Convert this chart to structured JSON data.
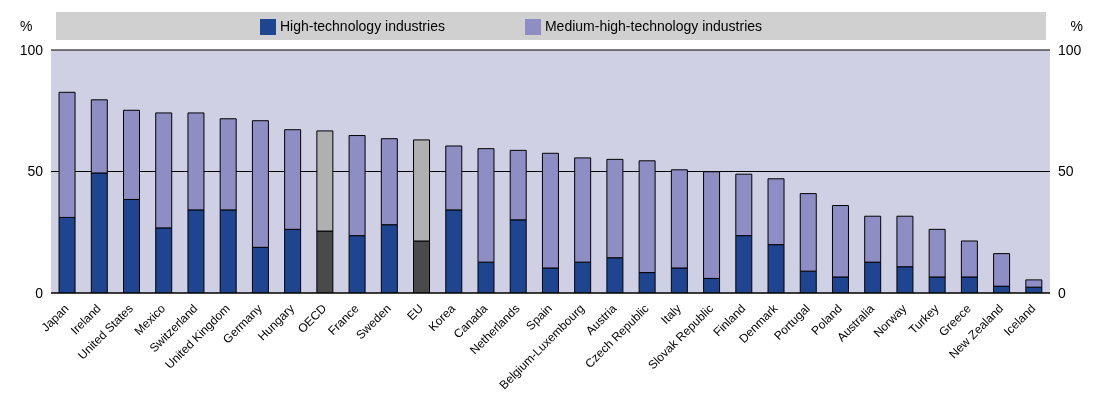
{
  "chart_data": {
    "type": "bar",
    "stacked": true,
    "ylabel": "%",
    "y2label": "%",
    "categories": [
      "Japan",
      "Ireland",
      "United States",
      "Mexico",
      "Switzerland",
      "United Kingdom",
      "Germany",
      "Hungary",
      "OECD",
      "France",
      "Sweden",
      "EU",
      "Korea",
      "Canada",
      "Netherlands",
      "Spain",
      "Belgium-Luxembourg",
      "Austria",
      "Czech Republic",
      "Italy",
      "Slovak Republic",
      "Finland",
      "Denmark",
      "Portugal",
      "Poland",
      "Australia",
      "Norway",
      "Turkey",
      "Greece",
      "New Zealand",
      "Iceland"
    ],
    "series": [
      {
        "name": "High-technology industries",
        "color": "#1f4591",
        "colors": [
          "#1f4591",
          "#1f4591",
          "#1f4591",
          "#1f4591",
          "#1f4591",
          "#1f4591",
          "#1f4591",
          "#1f4591",
          "#4a4a4a",
          "#1f4591",
          "#1f4591",
          "#4a4a4a",
          "#1f4591",
          "#1f4591",
          "#1f4591",
          "#1f4591",
          "#1f4591",
          "#1f4591",
          "#1f4591",
          "#1f4591",
          "#1f4591",
          "#1f4591",
          "#1f4591",
          "#1f4591",
          "#1f4591",
          "#1f4591",
          "#1f4591",
          "#1f4591",
          "#1f4591",
          "#1f4591",
          "#1f4591"
        ],
        "values": [
          31.1,
          49.4,
          38.5,
          26.8,
          34.2,
          34.2,
          18.8,
          26.2,
          25.5,
          23.6,
          28.1,
          21.4,
          34.2,
          12.7,
          30.1,
          10.3,
          12.7,
          14.5,
          8.4,
          10.3,
          6.0,
          23.6,
          19.9,
          9.0,
          6.6,
          12.7,
          10.8,
          6.6,
          6.6,
          2.8,
          2.4
        ]
      },
      {
        "name": "Medium-high-technology industries",
        "color": "#8e8ec4",
        "colors": [
          "#8e8ec4",
          "#8e8ec4",
          "#8e8ec4",
          "#8e8ec4",
          "#8e8ec4",
          "#8e8ec4",
          "#8e8ec4",
          "#8e8ec4",
          "#b0b0b0",
          "#8e8ec4",
          "#8e8ec4",
          "#b0b0b0",
          "#8e8ec4",
          "#8e8ec4",
          "#8e8ec4",
          "#8e8ec4",
          "#8e8ec4",
          "#8e8ec4",
          "#8e8ec4",
          "#8e8ec4",
          "#8e8ec4",
          "#8e8ec4",
          "#8e8ec4",
          "#8e8ec4",
          "#8e8ec4",
          "#8e8ec4",
          "#8e8ec4",
          "#8e8ec4",
          "#8e8ec4",
          "#8e8ec4",
          "#8e8ec4"
        ],
        "values": [
          51.5,
          30.1,
          36.7,
          47.3,
          39.9,
          37.5,
          52.1,
          41.0,
          41.2,
          41.2,
          35.4,
          41.6,
          26.3,
          46.7,
          28.6,
          47.2,
          42.9,
          40.5,
          46.0,
          40.4,
          43.9,
          25.3,
          27.1,
          31.9,
          29.4,
          18.9,
          20.8,
          19.6,
          14.8,
          13.4,
          3.0
        ]
      }
    ],
    "ylim": [
      0,
      100
    ],
    "yticks": [
      0,
      50,
      100
    ],
    "y2lim": [
      0,
      100
    ],
    "y2ticks": [
      0,
      50,
      100
    ],
    "grid": "y",
    "legend": "top"
  }
}
